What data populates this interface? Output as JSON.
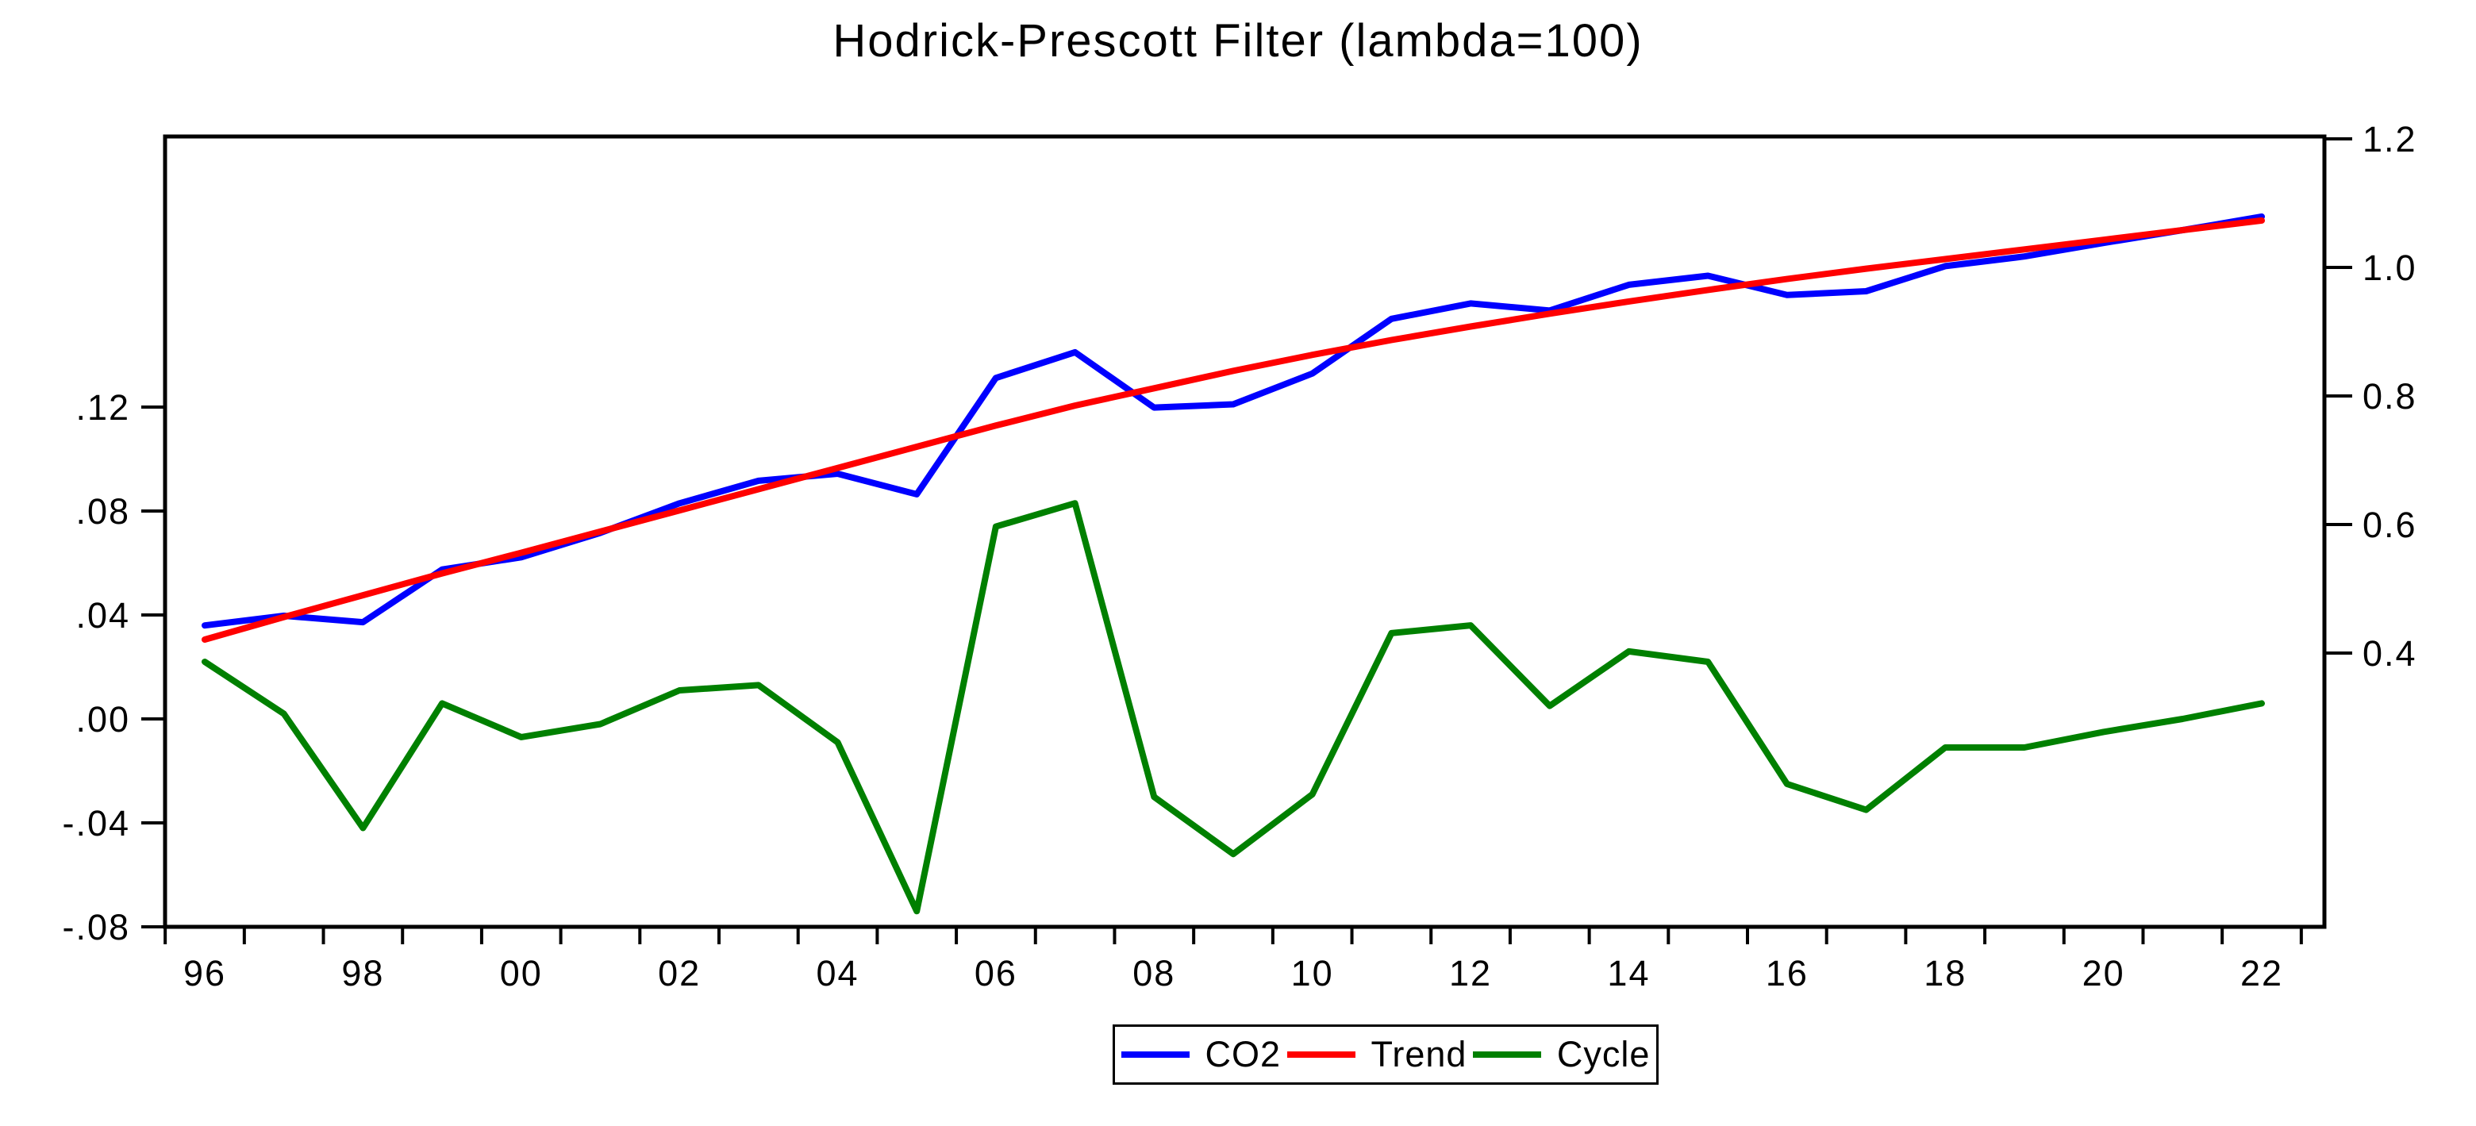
{
  "chart_data": {
    "type": "line",
    "title": "Hodrick-Prescott Filter (lambda=100)",
    "x": [
      1996,
      1997,
      1998,
      1999,
      2000,
      2001,
      2002,
      2003,
      2004,
      2005,
      2006,
      2007,
      2008,
      2009,
      2010,
      2011,
      2012,
      2013,
      2014,
      2015,
      2016,
      2017,
      2018,
      2019,
      2020,
      2021,
      2022
    ],
    "x_tick_labels": [
      "96",
      "98",
      "00",
      "02",
      "04",
      "06",
      "08",
      "10",
      "12",
      "14",
      "16",
      "18",
      "20",
      "22"
    ],
    "series": [
      {
        "name": "CO2",
        "color": "#0000ff",
        "axis": "right",
        "values": [
          0.443,
          0.458,
          0.448,
          0.53,
          0.549,
          0.587,
          0.633,
          0.668,
          0.679,
          0.647,
          0.828,
          0.868,
          0.782,
          0.787,
          0.835,
          0.92,
          0.944,
          0.933,
          0.973,
          0.987,
          0.957,
          0.963,
          1.002,
          1.017,
          1.038,
          1.058,
          1.079
        ]
      },
      {
        "name": "Trend",
        "color": "#ff0000",
        "axis": "right",
        "values": [
          0.421,
          0.456,
          0.49,
          0.524,
          0.556,
          0.589,
          0.622,
          0.655,
          0.688,
          0.721,
          0.754,
          0.785,
          0.812,
          0.839,
          0.864,
          0.887,
          0.908,
          0.928,
          0.947,
          0.965,
          0.982,
          0.998,
          1.013,
          1.028,
          1.043,
          1.058,
          1.073
        ]
      },
      {
        "name": "Cycle",
        "color": "#008000",
        "axis": "left",
        "values": [
          0.022,
          0.002,
          -0.042,
          0.006,
          -0.007,
          -0.002,
          0.011,
          0.013,
          -0.009,
          -0.074,
          0.074,
          0.083,
          -0.03,
          -0.052,
          -0.029,
          0.033,
          0.036,
          0.005,
          0.026,
          0.022,
          -0.025,
          -0.035,
          -0.011,
          -0.011,
          -0.005,
          0.0,
          0.006
        ]
      }
    ],
    "left_axis": {
      "tick_labels": [
        ".12",
        ".08",
        ".04",
        ".00",
        "-.04",
        "-.08"
      ],
      "tick_values": [
        0.12,
        0.08,
        0.04,
        0.0,
        -0.04,
        -0.08
      ],
      "range": [
        -0.08,
        0.224
      ]
    },
    "right_axis": {
      "tick_labels": [
        "1.2",
        "1.0",
        "0.8",
        "0.6",
        "0.4"
      ],
      "tick_values": [
        1.2,
        1.0,
        0.8,
        0.6,
        0.4
      ],
      "range": [
        -0.026,
        1.2
      ]
    },
    "legend": {
      "entries": [
        "CO2",
        "Trend",
        "Cycle"
      ],
      "position": "bottom-center"
    },
    "grid": false,
    "frame_color": "#000000",
    "background_color": "#ffffff"
  }
}
